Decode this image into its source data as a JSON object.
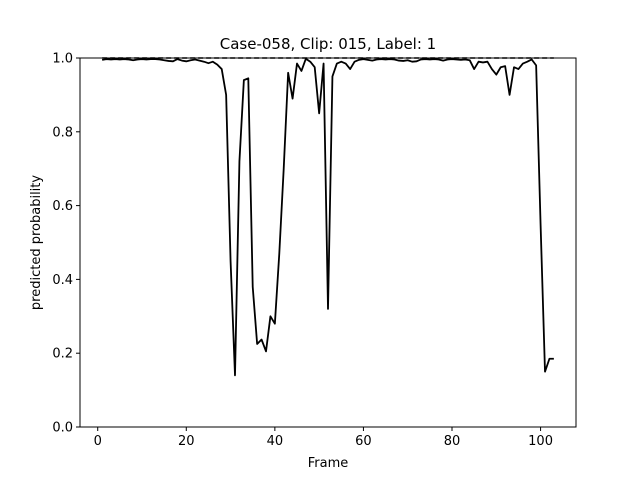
{
  "chart_data": {
    "type": "line",
    "title": "Case-058, Clip: 015, Label: 1",
    "xlabel": "Frame",
    "ylabel": "predicted probability",
    "xlim": [
      -4,
      108
    ],
    "ylim": [
      0.0,
      1.0
    ],
    "xticks": [
      0,
      20,
      40,
      60,
      80,
      100
    ],
    "yticks": [
      0.0,
      0.2,
      0.4,
      0.6,
      0.8,
      1.0
    ],
    "xtick_labels": [
      "0",
      "20",
      "40",
      "60",
      "80",
      "100"
    ],
    "ytick_labels": [
      "0.0",
      "0.2",
      "0.4",
      "0.6",
      "0.8",
      "1.0"
    ],
    "grid": false,
    "colors": {
      "line": "#000000",
      "threshold": "#000000"
    },
    "reference_line": {
      "y": 1.0,
      "x_start": 1,
      "x_end": 103,
      "style": "dashed"
    },
    "series": [
      {
        "x": [
          1,
          2,
          3,
          4,
          5,
          6,
          7,
          8,
          9,
          10,
          11,
          12,
          13,
          14,
          15,
          16,
          17,
          18,
          19,
          20,
          21,
          22,
          23,
          24,
          25,
          26,
          27,
          28,
          29,
          30,
          31,
          32,
          33,
          34,
          35,
          36,
          37,
          38,
          39,
          40,
          41,
          42,
          43,
          44,
          45,
          46,
          47,
          48,
          49,
          50,
          51,
          52,
          53,
          54,
          55,
          56,
          57,
          58,
          59,
          60,
          61,
          62,
          63,
          64,
          65,
          66,
          67,
          68,
          69,
          70,
          71,
          72,
          73,
          74,
          75,
          76,
          77,
          78,
          79,
          80,
          81,
          82,
          83,
          84,
          85,
          86,
          87,
          88,
          89,
          90,
          91,
          92,
          93,
          94,
          95,
          96,
          97,
          98,
          99,
          100,
          101,
          102,
          103
        ],
        "y": [
          0.995,
          0.997,
          0.996,
          0.997,
          0.996,
          0.997,
          0.996,
          0.994,
          0.996,
          0.997,
          0.996,
          0.997,
          0.997,
          0.996,
          0.994,
          0.992,
          0.991,
          0.997,
          0.993,
          0.991,
          0.994,
          0.996,
          0.993,
          0.99,
          0.986,
          0.99,
          0.982,
          0.97,
          0.9,
          0.45,
          0.14,
          0.72,
          0.94,
          0.945,
          0.38,
          0.225,
          0.237,
          0.205,
          0.3,
          0.28,
          0.47,
          0.7,
          0.96,
          0.89,
          0.985,
          0.965,
          0.998,
          0.99,
          0.975,
          0.85,
          0.985,
          0.32,
          0.95,
          0.985,
          0.99,
          0.985,
          0.97,
          0.99,
          0.995,
          0.997,
          0.995,
          0.993,
          0.996,
          0.997,
          0.996,
          0.997,
          0.996,
          0.993,
          0.992,
          0.994,
          0.99,
          0.991,
          0.996,
          0.997,
          0.996,
          0.997,
          0.996,
          0.993,
          0.996,
          0.997,
          0.996,
          0.995,
          0.996,
          0.994,
          0.97,
          0.99,
          0.988,
          0.99,
          0.97,
          0.955,
          0.975,
          0.978,
          0.9,
          0.975,
          0.97,
          0.985,
          0.99,
          0.996,
          0.98,
          0.55,
          0.15,
          0.185,
          0.185
        ]
      }
    ]
  }
}
